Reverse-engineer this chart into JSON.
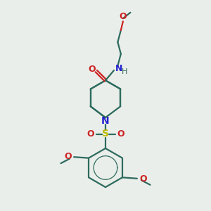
{
  "bg_color": "#eaeeea",
  "bond_color": "#2d6b5e",
  "N_color": "#2222cc",
  "O_color": "#cc2222",
  "S_color": "#bbbb00",
  "line_width": 1.6,
  "figsize": [
    3.0,
    3.0
  ],
  "dpi": 100,
  "xlim": [
    0,
    10
  ],
  "ylim": [
    0,
    10
  ]
}
